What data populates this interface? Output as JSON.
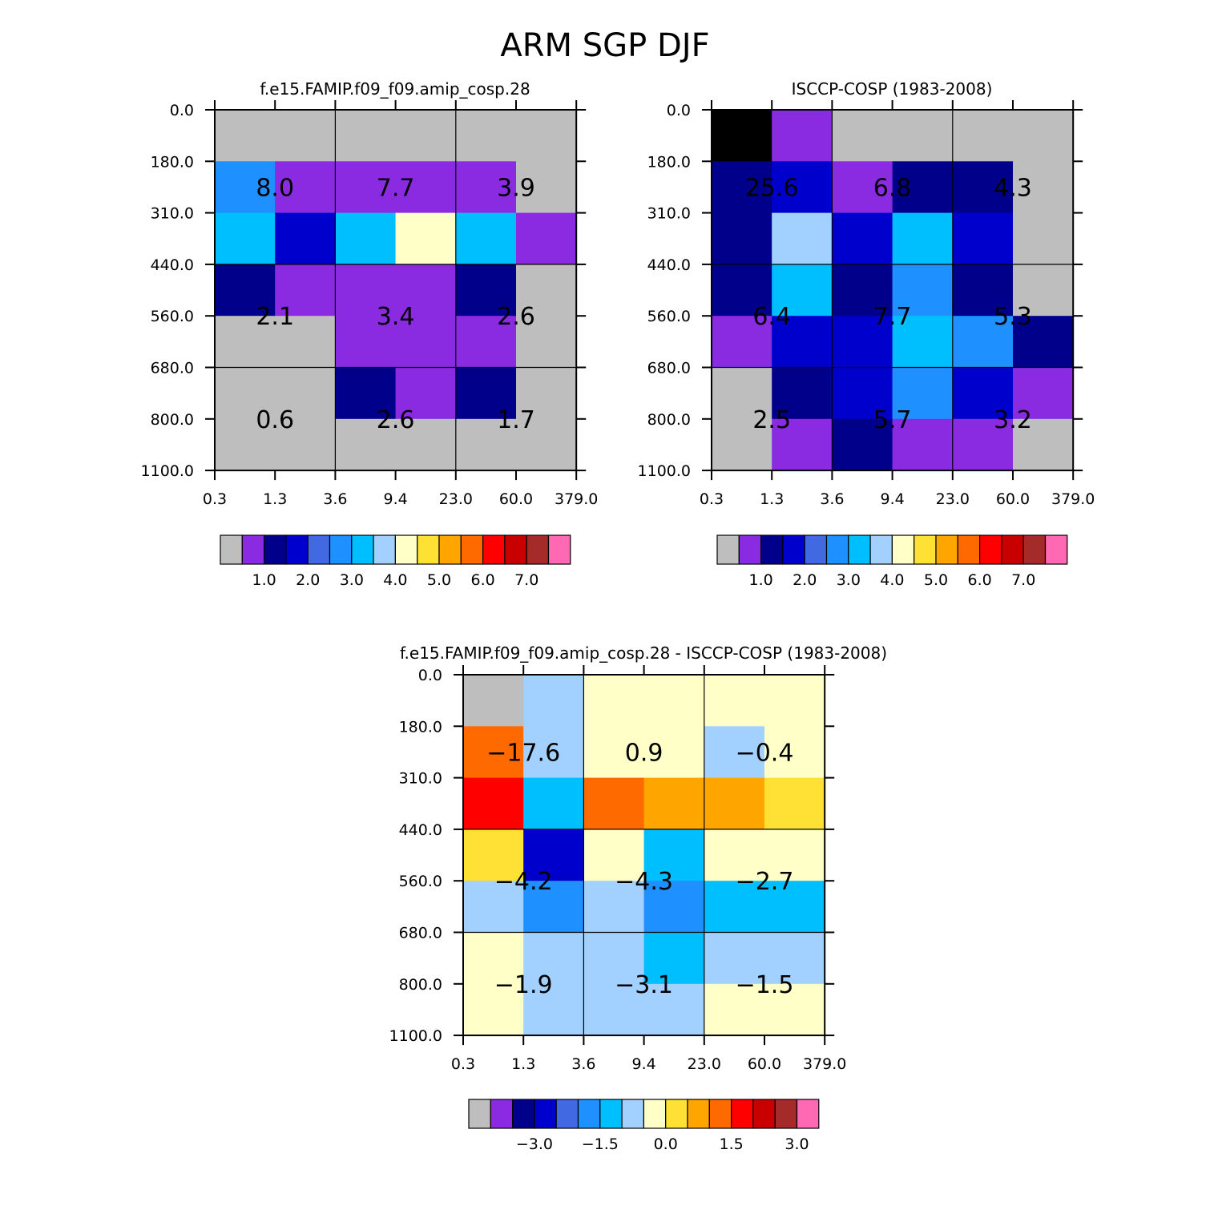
{
  "page": {
    "title": "ARM SGP DJF"
  },
  "chart_data": [
    {
      "type": "heatmap",
      "title": "f.e15.FAMIP.f09_f09.amip_cosp.28",
      "x_ticks": [
        "0.3",
        "1.3",
        "3.6",
        "9.4",
        "23.0",
        "60.0",
        "379.0"
      ],
      "y_ticks": [
        "0.0",
        "180.0",
        "310.0",
        "440.0",
        "560.0",
        "680.0",
        "800.0",
        "1100.0"
      ],
      "cell_colors": [
        [
          0,
          0,
          0,
          0,
          0,
          0
        ],
        [
          5,
          1,
          1,
          1,
          1,
          0
        ],
        [
          6,
          3,
          6,
          8,
          6,
          1
        ],
        [
          2,
          1,
          1,
          1,
          2,
          0
        ],
        [
          0,
          0,
          1,
          1,
          1,
          0
        ],
        [
          0,
          0,
          2,
          1,
          2,
          0
        ],
        [
          0,
          0,
          0,
          0,
          0,
          0
        ]
      ],
      "grouped_totals": [
        [
          "8.0",
          "7.7",
          "3.9"
        ],
        [
          "2.1",
          "3.4",
          "2.6"
        ],
        [
          "0.6",
          "2.6",
          "1.7"
        ]
      ],
      "colorbar_labels": [
        "1.0",
        "2.0",
        "3.0",
        "4.0",
        "5.0",
        "6.0",
        "7.0"
      ]
    },
    {
      "type": "heatmap",
      "title": "ISCCP-COSP (1983-2008)",
      "x_ticks": [
        "0.3",
        "1.3",
        "3.6",
        "9.4",
        "23.0",
        "60.0",
        "379.0"
      ],
      "y_ticks": [
        "0.0",
        "180.0",
        "310.0",
        "440.0",
        "560.0",
        "680.0",
        "800.0",
        "1100.0"
      ],
      "cell_colors": [
        [
          16,
          1,
          0,
          0,
          0,
          0
        ],
        [
          2,
          3,
          1,
          2,
          2,
          0
        ],
        [
          2,
          7,
          3,
          6,
          3,
          0
        ],
        [
          2,
          6,
          2,
          5,
          2,
          0
        ],
        [
          1,
          3,
          3,
          6,
          5,
          2
        ],
        [
          0,
          2,
          3,
          5,
          3,
          1
        ],
        [
          0,
          1,
          2,
          1,
          1,
          0
        ]
      ],
      "grouped_totals": [
        [
          "25.6",
          "6.8",
          "4.3"
        ],
        [
          "6.4",
          "7.7",
          "5.3"
        ],
        [
          "2.5",
          "5.7",
          "3.2"
        ]
      ],
      "colorbar_labels": [
        "1.0",
        "2.0",
        "3.0",
        "4.0",
        "5.0",
        "6.0",
        "7.0"
      ]
    },
    {
      "type": "heatmap",
      "title": "f.e15.FAMIP.f09_f09.amip_cosp.28 - ISCCP-COSP (1983-2008)",
      "x_ticks": [
        "0.3",
        "1.3",
        "3.6",
        "9.4",
        "23.0",
        "60.0",
        "379.0"
      ],
      "y_ticks": [
        "0.0",
        "180.0",
        "310.0",
        "440.0",
        "560.0",
        "680.0",
        "800.0",
        "1100.0"
      ],
      "cell_colors": [
        [
          0,
          7,
          8,
          8,
          8,
          8
        ],
        [
          11,
          7,
          8,
          8,
          7,
          8
        ],
        [
          12,
          6,
          11,
          10,
          10,
          9
        ],
        [
          9,
          3,
          8,
          6,
          8,
          8
        ],
        [
          7,
          5,
          7,
          5,
          6,
          6
        ],
        [
          8,
          7,
          7,
          6,
          7,
          7
        ],
        [
          8,
          7,
          7,
          7,
          8,
          8
        ]
      ],
      "grouped_totals": [
        [
          "−17.6",
          "0.9",
          "−0.4"
        ],
        [
          "−4.2",
          "−4.3",
          "−2.7"
        ],
        [
          "−1.9",
          "−3.1",
          "−1.5"
        ]
      ],
      "colorbar_labels": [
        "−3.0",
        "−1.5",
        "0.0",
        "1.5",
        "3.0"
      ]
    }
  ],
  "palette": [
    "#bebebe",
    "#8a2be2",
    "#00008b",
    "#0000cd",
    "#4169e1",
    "#1e90ff",
    "#00bfff",
    "#a3d1ff",
    "#ffffc8",
    "#ffe034",
    "#ffa500",
    "#ff6a00",
    "#ff0000",
    "#c80000",
    "#a52a2a",
    "#ff69b4"
  ]
}
